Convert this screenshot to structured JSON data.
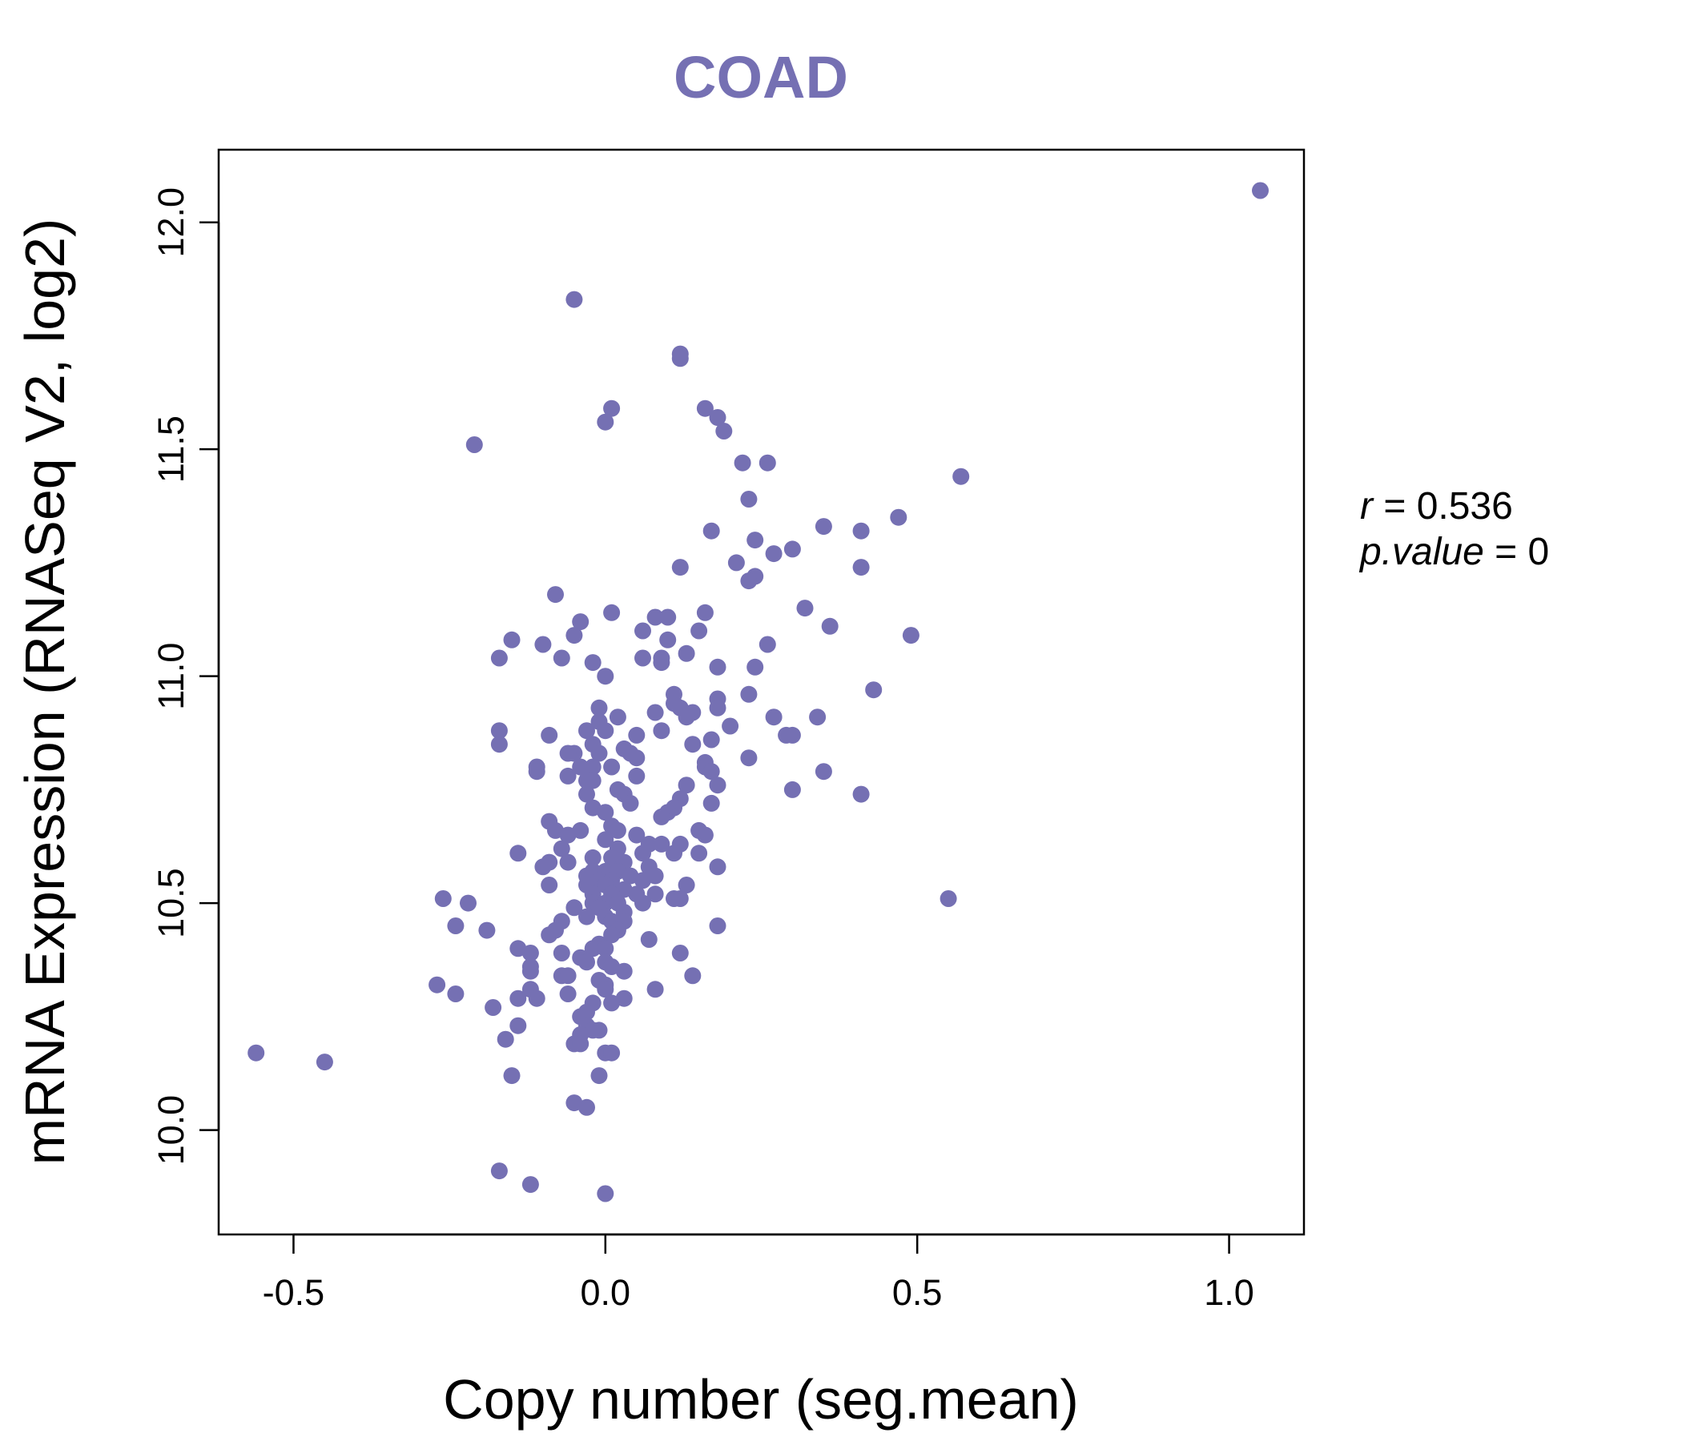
{
  "chart_data": {
    "type": "scatter",
    "title": "COAD",
    "xlabel": "Copy number (seg.mean)",
    "ylabel": "mRNA Expression (RNASeq V2, log2)",
    "xlim": [
      -0.62,
      1.12
    ],
    "ylim": [
      9.77,
      12.16
    ],
    "x_ticks": [
      -0.5,
      0.0,
      0.5,
      1.0
    ],
    "x_tick_labels": [
      "-0.5",
      "0.0",
      "0.5",
      "1.0"
    ],
    "y_ticks": [
      10.0,
      10.5,
      11.0,
      11.5,
      12.0
    ],
    "y_tick_labels": [
      "10.0",
      "10.5",
      "11.0",
      "11.5",
      "12.0"
    ],
    "grid": false,
    "point_color": "#7570b3",
    "annotation": {
      "r_label": "r",
      "r_value": "0.536",
      "p_label": "p.value",
      "p_value": "0"
    },
    "points": [
      [
        1.05,
        12.07
      ],
      [
        -0.05,
        11.83
      ],
      [
        0.12,
        11.71
      ],
      [
        0.12,
        11.7
      ],
      [
        0.01,
        11.59
      ],
      [
        0.0,
        11.56
      ],
      [
        0.16,
        11.59
      ],
      [
        0.18,
        11.57
      ],
      [
        0.19,
        11.54
      ],
      [
        -0.21,
        11.51
      ],
      [
        0.22,
        11.47
      ],
      [
        0.26,
        11.47
      ],
      [
        0.57,
        11.44
      ],
      [
        0.23,
        11.39
      ],
      [
        0.47,
        11.35
      ],
      [
        0.17,
        11.32
      ],
      [
        0.35,
        11.33
      ],
      [
        0.41,
        11.32
      ],
      [
        0.24,
        11.3
      ],
      [
        0.3,
        11.28
      ],
      [
        0.27,
        11.27
      ],
      [
        0.21,
        11.25
      ],
      [
        0.41,
        11.24
      ],
      [
        0.12,
        11.24
      ],
      [
        0.24,
        11.22
      ],
      [
        0.23,
        11.21
      ],
      [
        -0.08,
        11.18
      ],
      [
        0.32,
        11.15
      ],
      [
        0.01,
        11.14
      ],
      [
        0.16,
        11.14
      ],
      [
        0.08,
        11.13
      ],
      [
        0.1,
        11.13
      ],
      [
        -0.04,
        11.12
      ],
      [
        0.36,
        11.11
      ],
      [
        0.06,
        11.1
      ],
      [
        0.15,
        11.1
      ],
      [
        -0.05,
        11.09
      ],
      [
        0.49,
        11.09
      ],
      [
        -0.15,
        11.08
      ],
      [
        0.1,
        11.08
      ],
      [
        -0.1,
        11.07
      ],
      [
        0.26,
        11.07
      ],
      [
        0.06,
        11.04
      ],
      [
        0.09,
        11.04
      ],
      [
        0.13,
        11.05
      ],
      [
        -0.17,
        11.04
      ],
      [
        -0.07,
        11.04
      ],
      [
        -0.02,
        11.03
      ],
      [
        0.09,
        11.03
      ],
      [
        0.18,
        11.02
      ],
      [
        0.24,
        11.02
      ],
      [
        0.0,
        11.0
      ],
      [
        0.43,
        10.97
      ],
      [
        0.11,
        10.96
      ],
      [
        0.23,
        10.96
      ],
      [
        0.18,
        10.95
      ],
      [
        0.11,
        10.94
      ],
      [
        0.12,
        10.93
      ],
      [
        0.18,
        10.93
      ],
      [
        -0.01,
        10.93
      ],
      [
        0.08,
        10.92
      ],
      [
        0.14,
        10.92
      ],
      [
        0.13,
        10.91
      ],
      [
        0.02,
        10.91
      ],
      [
        -0.01,
        10.9
      ],
      [
        0.34,
        10.91
      ],
      [
        0.27,
        10.91
      ],
      [
        0.2,
        10.89
      ],
      [
        -0.03,
        10.88
      ],
      [
        0.0,
        10.88
      ],
      [
        -0.17,
        10.88
      ],
      [
        0.09,
        10.88
      ],
      [
        -0.09,
        10.87
      ],
      [
        0.05,
        10.87
      ],
      [
        0.29,
        10.87
      ],
      [
        0.3,
        10.87
      ],
      [
        0.17,
        10.86
      ],
      [
        -0.17,
        10.85
      ],
      [
        -0.02,
        10.85
      ],
      [
        0.03,
        10.84
      ],
      [
        0.14,
        10.85
      ],
      [
        -0.05,
        10.83
      ],
      [
        -0.06,
        10.83
      ],
      [
        -0.01,
        10.83
      ],
      [
        0.04,
        10.83
      ],
      [
        0.05,
        10.82
      ],
      [
        0.23,
        10.82
      ],
      [
        0.16,
        10.81
      ],
      [
        -0.11,
        10.8
      ],
      [
        -0.04,
        10.8
      ],
      [
        -0.02,
        10.8
      ],
      [
        0.01,
        10.8
      ],
      [
        0.16,
        10.8
      ],
      [
        0.17,
        10.79
      ],
      [
        0.35,
        10.79
      ],
      [
        -0.11,
        10.79
      ],
      [
        -0.06,
        10.78
      ],
      [
        0.05,
        10.78
      ],
      [
        -0.03,
        10.77
      ],
      [
        -0.02,
        10.77
      ],
      [
        0.02,
        10.75
      ],
      [
        0.03,
        10.74
      ],
      [
        0.13,
        10.76
      ],
      [
        0.18,
        10.76
      ],
      [
        0.3,
        10.75
      ],
      [
        0.41,
        10.74
      ],
      [
        -0.03,
        10.74
      ],
      [
        0.12,
        10.73
      ],
      [
        0.04,
        10.72
      ],
      [
        -0.02,
        10.71
      ],
      [
        0.0,
        10.7
      ],
      [
        0.17,
        10.72
      ],
      [
        0.11,
        10.71
      ],
      [
        0.1,
        10.7
      ],
      [
        0.09,
        10.69
      ],
      [
        -0.09,
        10.68
      ],
      [
        -0.08,
        10.66
      ],
      [
        -0.04,
        10.66
      ],
      [
        0.01,
        10.67
      ],
      [
        0.02,
        10.66
      ],
      [
        0.15,
        10.66
      ],
      [
        0.16,
        10.65
      ],
      [
        -0.06,
        10.65
      ],
      [
        0.05,
        10.65
      ],
      [
        0.0,
        10.64
      ],
      [
        0.07,
        10.63
      ],
      [
        0.09,
        10.63
      ],
      [
        0.12,
        10.63
      ],
      [
        -0.07,
        10.62
      ],
      [
        0.02,
        10.62
      ],
      [
        -0.14,
        10.61
      ],
      [
        0.06,
        10.61
      ],
      [
        0.11,
        10.61
      ],
      [
        0.15,
        10.61
      ],
      [
        -0.02,
        10.6
      ],
      [
        0.01,
        10.6
      ],
      [
        -0.09,
        10.59
      ],
      [
        -0.06,
        10.59
      ],
      [
        0.03,
        10.59
      ],
      [
        0.07,
        10.58
      ],
      [
        -0.1,
        10.58
      ],
      [
        0.18,
        10.58
      ],
      [
        -0.02,
        10.57
      ],
      [
        0.0,
        10.57
      ],
      [
        0.02,
        10.57
      ],
      [
        0.04,
        10.56
      ],
      [
        0.08,
        10.56
      ],
      [
        -0.03,
        10.56
      ],
      [
        -0.01,
        10.55
      ],
      [
        0.01,
        10.55
      ],
      [
        0.06,
        10.55
      ],
      [
        -0.09,
        10.54
      ],
      [
        -0.03,
        10.54
      ],
      [
        0.0,
        10.54
      ],
      [
        0.03,
        10.53
      ],
      [
        0.13,
        10.54
      ],
      [
        -0.02,
        10.52
      ],
      [
        0.01,
        10.52
      ],
      [
        0.05,
        10.52
      ],
      [
        0.08,
        10.52
      ],
      [
        0.11,
        10.51
      ],
      [
        0.12,
        10.51
      ],
      [
        -0.26,
        10.51
      ],
      [
        0.55,
        10.51
      ],
      [
        -0.02,
        10.5
      ],
      [
        0.0,
        10.5
      ],
      [
        0.02,
        10.5
      ],
      [
        0.06,
        10.5
      ],
      [
        -0.22,
        10.5
      ],
      [
        -0.05,
        10.49
      ],
      [
        -0.01,
        10.49
      ],
      [
        0.03,
        10.48
      ],
      [
        -0.03,
        10.47
      ],
      [
        0.0,
        10.47
      ],
      [
        -0.07,
        10.46
      ],
      [
        0.01,
        10.46
      ],
      [
        0.03,
        10.46
      ],
      [
        0.18,
        10.45
      ],
      [
        -0.24,
        10.45
      ],
      [
        -0.19,
        10.44
      ],
      [
        -0.08,
        10.44
      ],
      [
        0.02,
        10.44
      ],
      [
        -0.09,
        10.43
      ],
      [
        0.01,
        10.43
      ],
      [
        0.07,
        10.42
      ],
      [
        -0.01,
        10.41
      ],
      [
        -0.02,
        10.4
      ],
      [
        0.0,
        10.4
      ],
      [
        -0.14,
        10.4
      ],
      [
        -0.12,
        10.39
      ],
      [
        0.12,
        10.39
      ],
      [
        -0.07,
        10.39
      ],
      [
        -0.04,
        10.38
      ],
      [
        -0.03,
        10.37
      ],
      [
        0.0,
        10.37
      ],
      [
        0.01,
        10.36
      ],
      [
        -0.12,
        10.36
      ],
      [
        -0.12,
        10.35
      ],
      [
        0.03,
        10.35
      ],
      [
        -0.07,
        10.34
      ],
      [
        -0.06,
        10.34
      ],
      [
        -0.01,
        10.33
      ],
      [
        0.14,
        10.34
      ],
      [
        -0.27,
        10.32
      ],
      [
        0.0,
        10.32
      ],
      [
        0.0,
        10.31
      ],
      [
        0.08,
        10.31
      ],
      [
        -0.12,
        10.31
      ],
      [
        -0.06,
        10.3
      ],
      [
        -0.24,
        10.3
      ],
      [
        0.03,
        10.29
      ],
      [
        -0.14,
        10.29
      ],
      [
        -0.11,
        10.29
      ],
      [
        0.01,
        10.28
      ],
      [
        -0.02,
        10.28
      ],
      [
        -0.18,
        10.27
      ],
      [
        -0.03,
        10.26
      ],
      [
        -0.04,
        10.25
      ],
      [
        -0.03,
        10.23
      ],
      [
        -0.14,
        10.23
      ],
      [
        -0.01,
        10.22
      ],
      [
        -0.02,
        10.22
      ],
      [
        -0.04,
        10.21
      ],
      [
        -0.16,
        10.2
      ],
      [
        -0.05,
        10.19
      ],
      [
        -0.04,
        10.19
      ],
      [
        0.0,
        10.17
      ],
      [
        0.01,
        10.17
      ],
      [
        -0.56,
        10.17
      ],
      [
        -0.45,
        10.15
      ],
      [
        -0.01,
        10.12
      ],
      [
        -0.15,
        10.12
      ],
      [
        -0.05,
        10.06
      ],
      [
        -0.03,
        10.05
      ],
      [
        -0.17,
        9.91
      ],
      [
        -0.12,
        9.88
      ],
      [
        0.0,
        9.86
      ]
    ]
  }
}
